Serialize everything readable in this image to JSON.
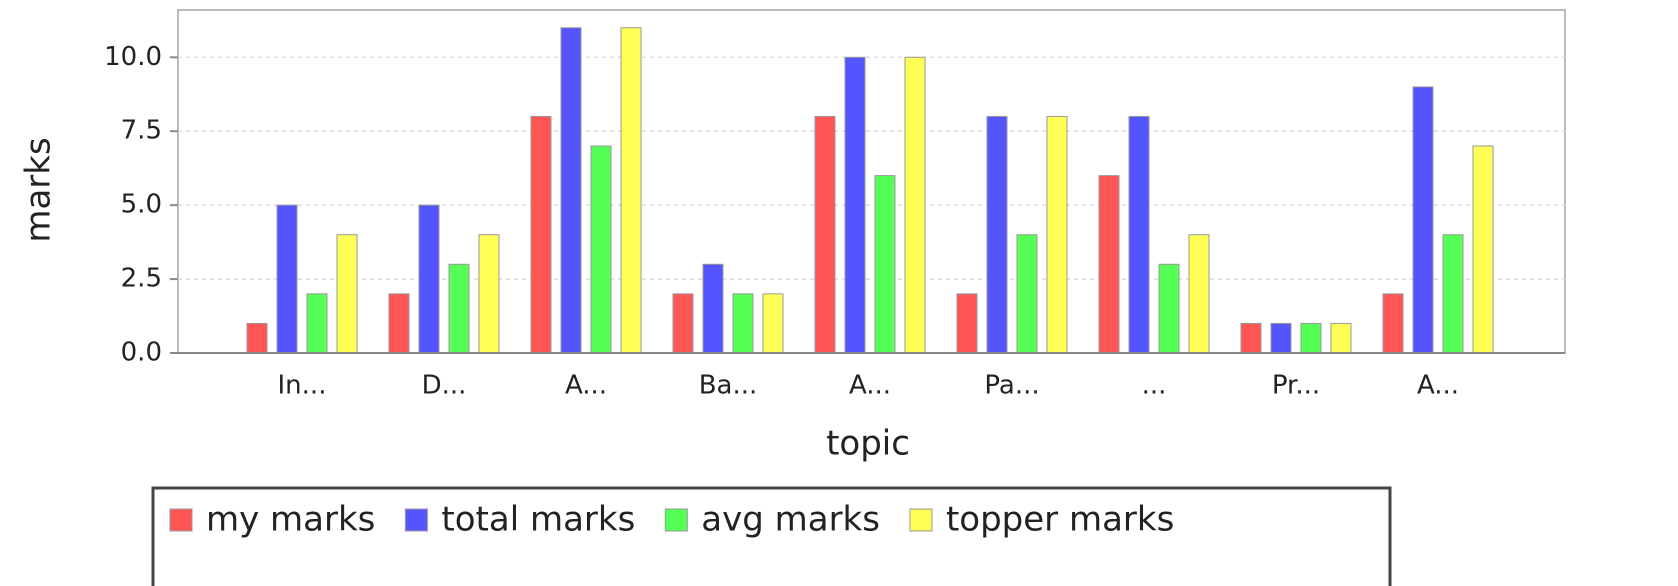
{
  "chart_data": {
    "type": "bar",
    "x_label": "topic",
    "y_label": "marks",
    "categories": [
      "In...",
      "D...",
      "A...",
      "Ba...",
      "A...",
      "Pa...",
      "...",
      "Pr...",
      "A..."
    ],
    "series": [
      {
        "name": "my marks",
        "color": "#ff5555",
        "values": [
          1,
          2,
          8,
          2,
          8,
          2,
          6,
          1,
          2
        ]
      },
      {
        "name": "total marks",
        "color": "#5555ff",
        "values": [
          5,
          5,
          11,
          3,
          10,
          8,
          8,
          1,
          9
        ]
      },
      {
        "name": "avg marks",
        "color": "#55ff55",
        "values": [
          2,
          3,
          7,
          2,
          6,
          4,
          3,
          1,
          4
        ]
      },
      {
        "name": "topper marks",
        "color": "#ffff55",
        "values": [
          4,
          4,
          11,
          2,
          10,
          8,
          4,
          1,
          7
        ]
      }
    ],
    "ylim": [
      0,
      11.6
    ],
    "yticks": [
      {
        "value": 0,
        "label": "0.0"
      },
      2.5,
      {
        "value": 5,
        "label": "5.0"
      },
      7.5,
      {
        "value": 10,
        "label": "10.0"
      }
    ],
    "grid": true,
    "legend": "bottom"
  }
}
